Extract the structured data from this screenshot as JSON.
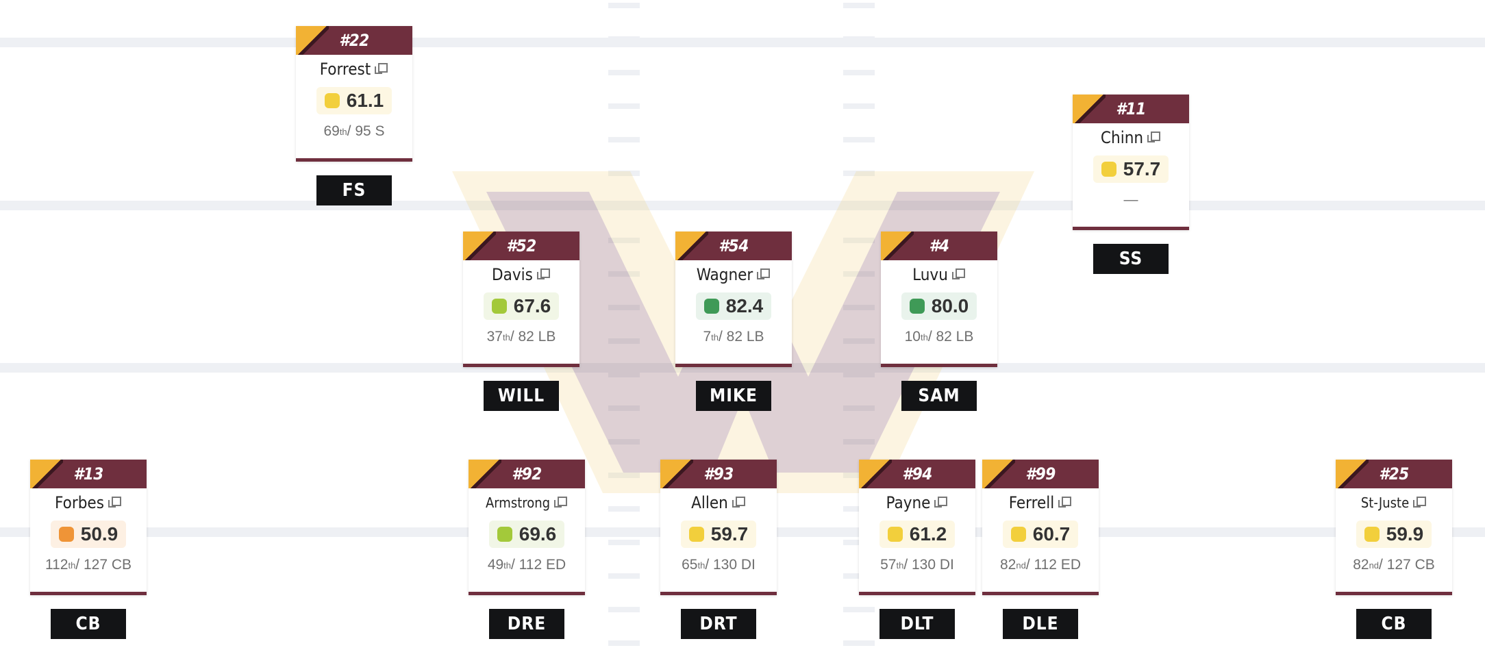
{
  "colors": {
    "maroon": "#6f2f3e",
    "gold": "#f2b234",
    "grade_yellow": "#f2cf3c",
    "grade_lightgreen": "#a3c93a",
    "grade_green": "#3f9a57",
    "grade_orange": "#ef9437",
    "position_badge": "#131416"
  },
  "players": [
    {
      "number": "#22",
      "name": "Forrest",
      "grade": "61.1",
      "grade_tier": "yellow",
      "rank": "69",
      "rank_suffix": "th",
      "rank_rest": " / 95 S",
      "position": "FS"
    },
    {
      "number": "#11",
      "name": "Chinn",
      "grade": "57.7",
      "grade_tier": "yellow",
      "rank": "",
      "rank_suffix": "",
      "rank_rest": "—",
      "position": "SS"
    },
    {
      "number": "#52",
      "name": "Davis",
      "grade": "67.6",
      "grade_tier": "lightgreen",
      "rank": "37",
      "rank_suffix": "th",
      "rank_rest": " / 82 LB",
      "position": "WILL"
    },
    {
      "number": "#54",
      "name": "Wagner",
      "grade": "82.4",
      "grade_tier": "green",
      "rank": "7",
      "rank_suffix": "th",
      "rank_rest": " / 82 LB",
      "position": "MIKE"
    },
    {
      "number": "#4",
      "name": "Luvu",
      "grade": "80.0",
      "grade_tier": "green",
      "rank": "10",
      "rank_suffix": "th",
      "rank_rest": " / 82 LB",
      "position": "SAM"
    },
    {
      "number": "#13",
      "name": "Forbes",
      "grade": "50.9",
      "grade_tier": "orange",
      "rank": "112",
      "rank_suffix": "th",
      "rank_rest": " / 127 CB",
      "position": "CB"
    },
    {
      "number": "#92",
      "name": "Armstrong",
      "grade": "69.6",
      "grade_tier": "lightgreen",
      "rank": "49",
      "rank_suffix": "th",
      "rank_rest": " / 112 ED",
      "position": "DRE"
    },
    {
      "number": "#93",
      "name": "Allen",
      "grade": "59.7",
      "grade_tier": "yellow",
      "rank": "65",
      "rank_suffix": "th",
      "rank_rest": " / 130 DI",
      "position": "DRT"
    },
    {
      "number": "#94",
      "name": "Payne",
      "grade": "61.2",
      "grade_tier": "yellow",
      "rank": "57",
      "rank_suffix": "th",
      "rank_rest": " / 130 DI",
      "position": "DLT"
    },
    {
      "number": "#99",
      "name": "Ferrell",
      "grade": "60.7",
      "grade_tier": "yellow",
      "rank": "82",
      "rank_suffix": "nd",
      "rank_rest": " / 112 ED",
      "position": "DLE"
    },
    {
      "number": "#25",
      "name": "St-Juste",
      "grade": "59.9",
      "grade_tier": "yellow",
      "rank": "82",
      "rank_suffix": "nd",
      "rank_rest": " / 127 CB",
      "position": "CB"
    }
  ]
}
